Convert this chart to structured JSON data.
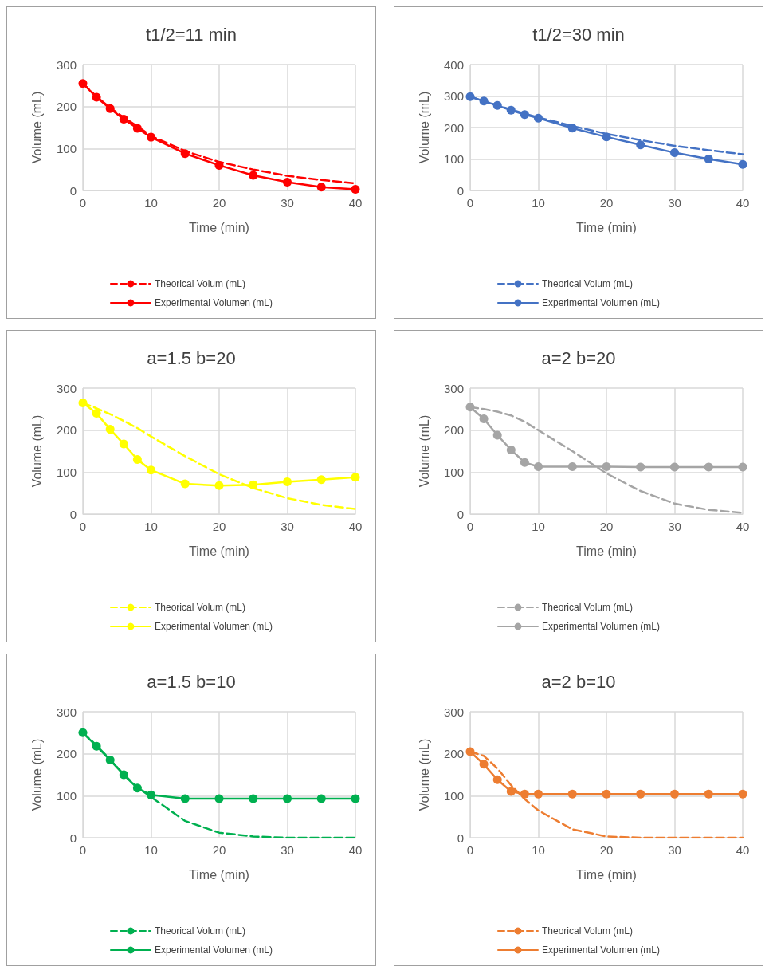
{
  "chart_data": [
    {
      "type": "line",
      "title": "t1/2=11 min",
      "xlabel": "Time (min)",
      "ylabel": "Volume (mL)",
      "x": [
        0,
        2,
        4,
        6,
        8,
        10,
        15,
        20,
        25,
        30,
        35,
        40
      ],
      "xlim": [
        0,
        40
      ],
      "xticks": [
        0,
        10,
        20,
        30,
        40
      ],
      "ylim": [
        0,
        300
      ],
      "yticks": [
        0,
        100,
        200,
        300
      ],
      "grid": true,
      "legend": "bottom",
      "series": [
        {
          "name": "Theorical Volum (mL)",
          "color": "#ff0000",
          "line_style": "dashed",
          "marker": "none",
          "values": [
            255,
            224,
            197,
            174,
            153,
            130,
            94,
            68,
            50,
            35,
            25,
            17
          ]
        },
        {
          "name": "Experimental Volumen (mL)",
          "color": "#ff0000",
          "line_style": "solid",
          "marker": "circle",
          "values": [
            255,
            222,
            195,
            170,
            148,
            127,
            88,
            60,
            36,
            20,
            8,
            3
          ]
        }
      ]
    },
    {
      "type": "line",
      "title": "t1/2=30 min",
      "xlabel": "Time (min)",
      "ylabel": "Volume (mL)",
      "x": [
        0,
        2,
        4,
        6,
        8,
        10,
        15,
        20,
        25,
        30,
        35,
        40
      ],
      "xlim": [
        0,
        40
      ],
      "xticks": [
        0,
        10,
        20,
        30,
        40
      ],
      "ylim": [
        0,
        400
      ],
      "yticks": [
        0,
        100,
        200,
        300,
        400
      ],
      "grid": true,
      "legend": "bottom",
      "series": [
        {
          "name": "Theorical Volum (mL)",
          "color": "#4472c4",
          "line_style": "dashed",
          "marker": "none",
          "values": [
            298,
            284,
            270,
            257,
            244,
            232,
            205,
            180,
            160,
            142,
            128,
            115
          ]
        },
        {
          "name": "Experimental Volumen (mL)",
          "color": "#4472c4",
          "line_style": "solid",
          "marker": "circle",
          "values": [
            298,
            284,
            270,
            255,
            241,
            230,
            198,
            170,
            145,
            120,
            100,
            83
          ]
        }
      ]
    },
    {
      "type": "line",
      "title": "a=1.5 b=20",
      "xlabel": "Time (min)",
      "ylabel": "Volume (mL)",
      "x": [
        0,
        2,
        4,
        6,
        8,
        10,
        15,
        20,
        25,
        30,
        35,
        40
      ],
      "xlim": [
        0,
        40
      ],
      "xticks": [
        0,
        10,
        20,
        30,
        40
      ],
      "ylim": [
        0,
        300
      ],
      "yticks": [
        0,
        100,
        200,
        300
      ],
      "grid": true,
      "legend": "bottom",
      "series": [
        {
          "name": "Theorical Volum (mL)",
          "color": "#ffff00",
          "line_style": "dashed",
          "marker": "none",
          "values": [
            265,
            252,
            238,
            222,
            205,
            185,
            138,
            95,
            62,
            38,
            22,
            12
          ]
        },
        {
          "name": "Experimental Volumen (mL)",
          "color": "#ffff00",
          "line_style": "solid",
          "marker": "circle",
          "values": [
            265,
            240,
            202,
            167,
            130,
            105,
            72,
            68,
            70,
            77,
            82,
            88
          ]
        }
      ]
    },
    {
      "type": "line",
      "title": "a=2 b=20",
      "xlabel": "Time (min)",
      "ylabel": "Volume (mL)",
      "x": [
        0,
        2,
        4,
        6,
        8,
        10,
        15,
        20,
        25,
        30,
        35,
        40
      ],
      "xlim": [
        0,
        40
      ],
      "xticks": [
        0,
        10,
        20,
        30,
        40
      ],
      "ylim": [
        0,
        300
      ],
      "yticks": [
        0,
        100,
        200,
        300
      ],
      "grid": true,
      "legend": "bottom",
      "series": [
        {
          "name": "Theorical Volum (mL)",
          "color": "#a5a5a5",
          "line_style": "dashed",
          "marker": "none",
          "values": [
            255,
            250,
            244,
            235,
            220,
            200,
            150,
            97,
            55,
            25,
            10,
            3
          ]
        },
        {
          "name": "Experimental Volumen (mL)",
          "color": "#a5a5a5",
          "line_style": "solid",
          "marker": "circle",
          "values": [
            255,
            227,
            188,
            153,
            123,
            113,
            113,
            113,
            112,
            112,
            112,
            112
          ]
        }
      ]
    },
    {
      "type": "line",
      "title": "a=1.5 b=10",
      "xlabel": "Time (min)",
      "ylabel": "Volume (mL)",
      "x": [
        0,
        2,
        4,
        6,
        8,
        10,
        15,
        20,
        25,
        30,
        35,
        40
      ],
      "xlim": [
        0,
        40
      ],
      "xticks": [
        0,
        10,
        20,
        30,
        40
      ],
      "ylim": [
        0,
        300
      ],
      "yticks": [
        0,
        100,
        200,
        300
      ],
      "grid": true,
      "legend": "bottom",
      "series": [
        {
          "name": "Theorical Volum (mL)",
          "color": "#00b050",
          "line_style": "dashed",
          "marker": "none",
          "values": [
            250,
            220,
            186,
            151,
            120,
            97,
            40,
            12,
            3,
            0,
            0,
            0
          ]
        },
        {
          "name": "Experimental Volumen (mL)",
          "color": "#00b050",
          "line_style": "solid",
          "marker": "circle",
          "values": [
            250,
            218,
            185,
            150,
            118,
            102,
            93,
            93,
            93,
            93,
            93,
            93
          ]
        }
      ]
    },
    {
      "type": "line",
      "title": "a=2 b=10",
      "xlabel": "Time (min)",
      "ylabel": "Volume (mL)",
      "x": [
        0,
        2,
        4,
        6,
        8,
        10,
        15,
        20,
        25,
        30,
        35,
        40
      ],
      "xlim": [
        0,
        40
      ],
      "xticks": [
        0,
        10,
        20,
        30,
        40
      ],
      "ylim": [
        0,
        300
      ],
      "yticks": [
        0,
        100,
        200,
        300
      ],
      "grid": true,
      "legend": "bottom",
      "series": [
        {
          "name": "Theorical Volum (mL)",
          "color": "#ed7d31",
          "line_style": "dashed",
          "marker": "none",
          "values": [
            205,
            195,
            165,
            125,
            92,
            65,
            20,
            3,
            0,
            0,
            0,
            0
          ]
        },
        {
          "name": "Experimental Volumen (mL)",
          "color": "#ed7d31",
          "line_style": "solid",
          "marker": "circle",
          "values": [
            205,
            175,
            138,
            110,
            104,
            104,
            104,
            104,
            104,
            104,
            104,
            104
          ]
        }
      ]
    }
  ]
}
